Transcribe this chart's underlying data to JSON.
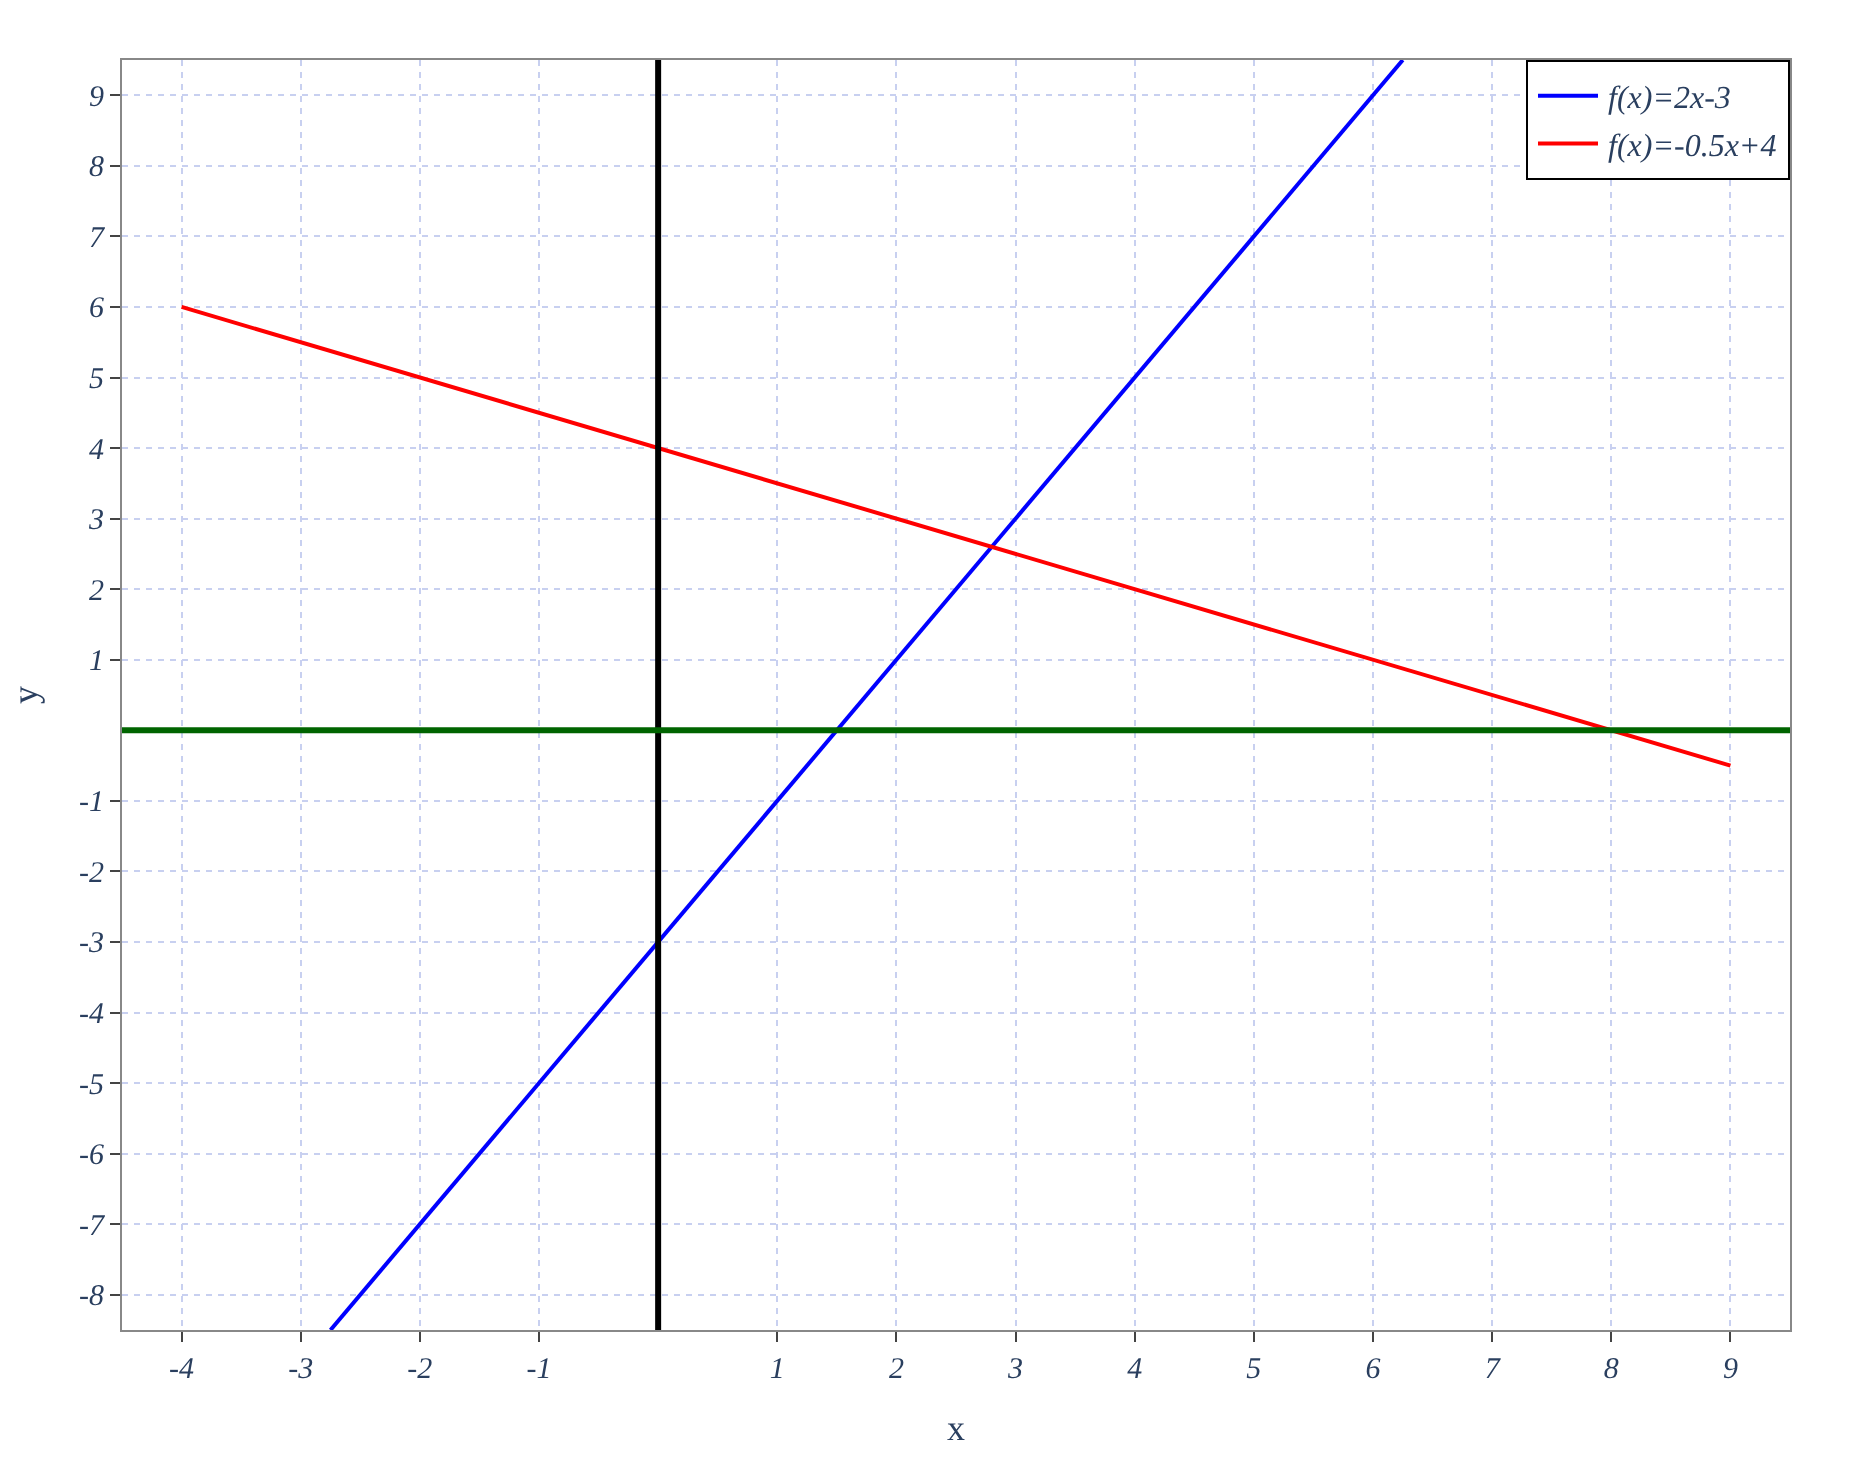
{
  "chart_data": {
    "type": "line",
    "xlabel": "x",
    "ylabel": "y",
    "xlim": [
      -4.5,
      9.5
    ],
    "ylim": [
      -8.5,
      9.5
    ],
    "xticks": [
      -4,
      -3,
      -2,
      -1,
      1,
      2,
      3,
      4,
      5,
      6,
      7,
      8,
      9
    ],
    "yticks": [
      -8,
      -7,
      -6,
      -5,
      -4,
      -3,
      -2,
      -1,
      1,
      2,
      3,
      4,
      5,
      6,
      7,
      8,
      9
    ],
    "ref_lines": [
      {
        "axis": "x",
        "value": 0,
        "color": "#000000"
      },
      {
        "axis": "y",
        "value": 0,
        "color": "#006400"
      }
    ],
    "grid": true,
    "legend": "top right",
    "marker": "none",
    "line_style": "solid",
    "series": [
      {
        "name": "f(x)=2x-3",
        "color": "#0000ff",
        "x": [
          -2.75,
          6.25
        ],
        "values": [
          -8.5,
          9.5
        ]
      },
      {
        "name": "f(x)=-0.5x+4",
        "color": "#ff0000",
        "x": [
          -4,
          9
        ],
        "values": [
          6,
          -0.5
        ]
      }
    ]
  }
}
